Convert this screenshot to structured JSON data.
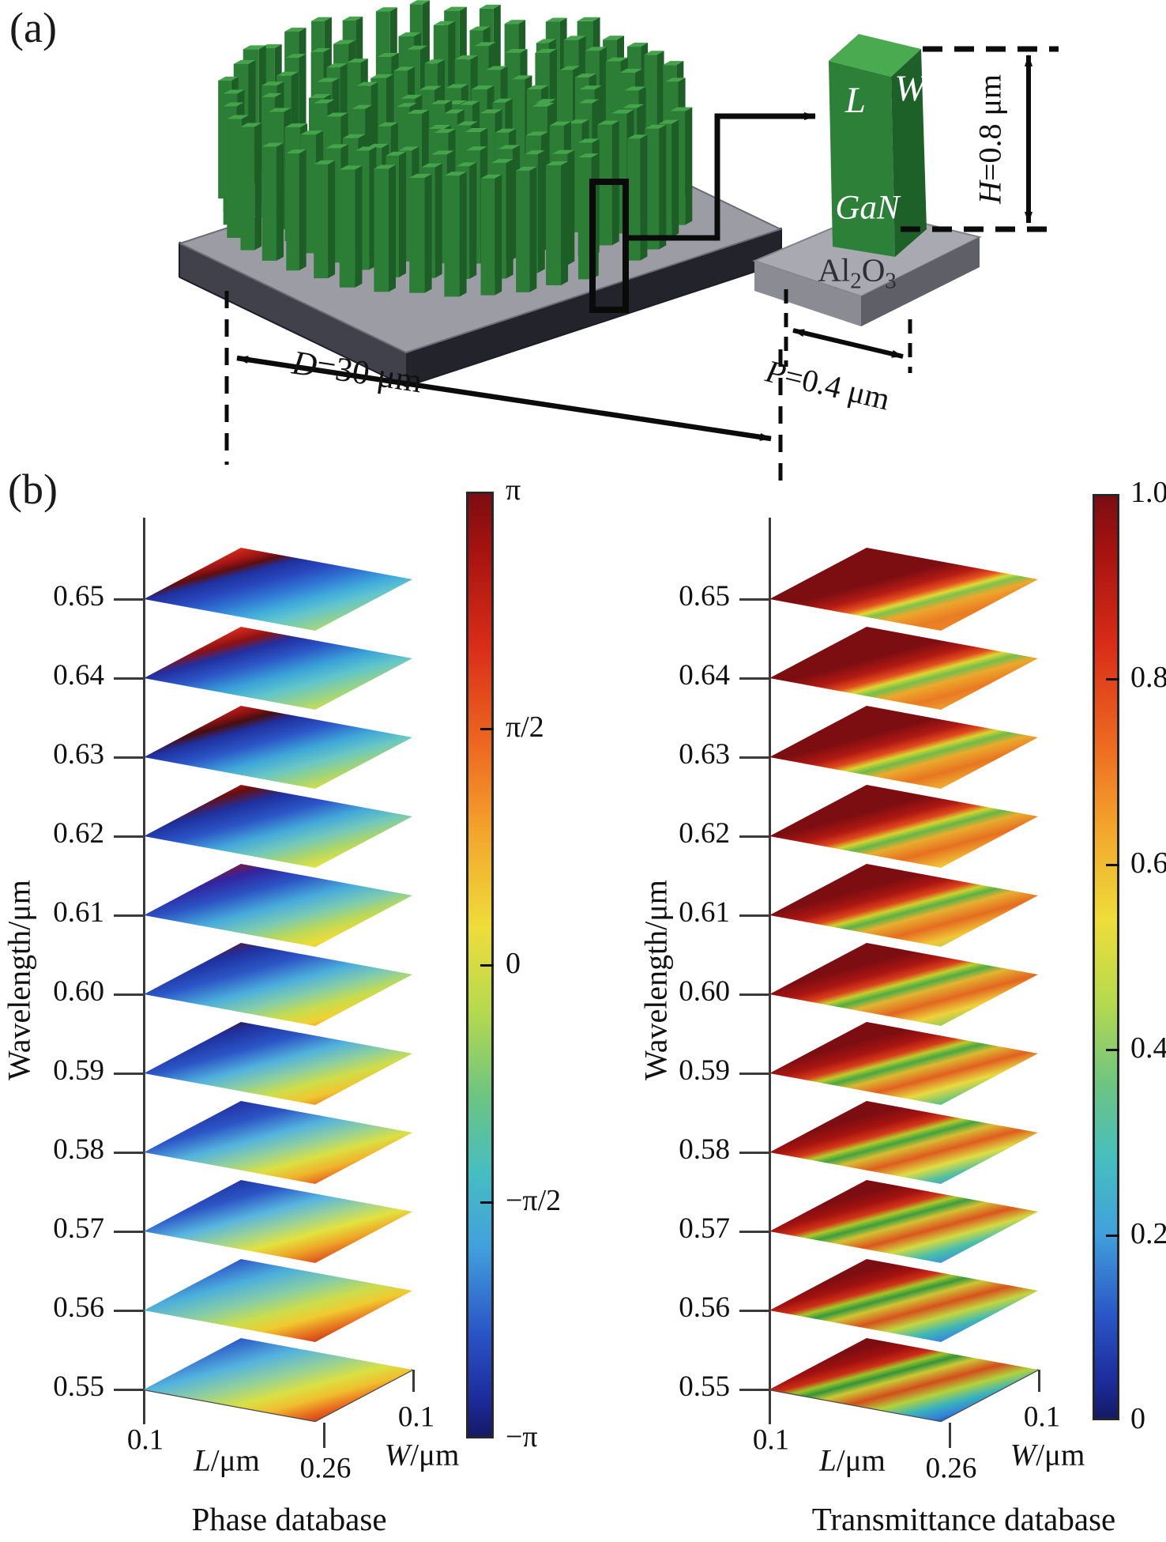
{
  "panel_a": {
    "label": "(a)",
    "metalens": {
      "diameter_var": "D",
      "diameter_rest": "=30 μm"
    },
    "unit_cell": {
      "length_label": "L",
      "width_label": "W",
      "material_label": "GaN",
      "substrate_al": "Al",
      "substrate_sub2": "2",
      "substrate_o": "O",
      "substrate_sub3": "3",
      "height_var": "H",
      "height_rest": "=0.8 μm",
      "period_var": "P",
      "period_rest": "=0.4 μm"
    },
    "colors": {
      "pillar_front": "#2c7d35",
      "pillar_side": "#1c5e26",
      "pillar_top": "#45a34b",
      "plate_top": "#9c9ca5",
      "plate_front": "#41414b",
      "plate_side": "#23232c",
      "base_top": "#a9a9b1",
      "base_left": "#8b8b93",
      "base_right": "#5f5f68"
    }
  },
  "panel_b": {
    "label": "(b)"
  },
  "chart_data": [
    {
      "type": "heatmap",
      "variant": "stacked-3d-surfaces",
      "title": "Phase database",
      "x_var": "L",
      "x_unit": "/μm",
      "x_ticks": [
        "0.1",
        "0.26"
      ],
      "x_range": [
        0.1,
        0.26
      ],
      "y_var": "W",
      "y_unit": "/μm",
      "y_ticks": [
        "0.1"
      ],
      "zlabel": "Wavelength/μm",
      "wavelengths": [
        "0.65",
        "0.64",
        "0.63",
        "0.62",
        "0.61",
        "0.60",
        "0.59",
        "0.58",
        "0.57",
        "0.56",
        "0.55"
      ],
      "colorbar": {
        "colormap": "jet",
        "ticks": [
          "π",
          "π/2",
          "0",
          "−π/2",
          "−π"
        ],
        "min_label": "−π",
        "max_label": "π"
      },
      "surfaces": [
        {
          "wavelength": "0.65",
          "stops": [
            "#f2a037 0%",
            "#ec6e24 8%",
            "#da2f1c 16%",
            "#a31515 24%",
            "#5c0f10 29%",
            "#1f309e 34%",
            "#2848be 43%",
            "#2f74d3 52%",
            "#41abdc 62%",
            "#62c5cd 70%",
            "#90d193 79%",
            "#c6de57 89%",
            "#eee23a 100%"
          ]
        },
        {
          "wavelength": "0.64",
          "stops": [
            "#f09a34 0%",
            "#e85c20 9%",
            "#d4291b 18%",
            "#8c1113 26%",
            "#232f9f 33%",
            "#2b55c6 43%",
            "#3aa2d9 55%",
            "#60c5cb 65%",
            "#95d28a 75%",
            "#d2e04c 85%",
            "#f0d634 93%",
            "#f09e2e 100%"
          ]
        },
        {
          "wavelength": "0.63",
          "stops": [
            "#ec7e2b 0%",
            "#de3a1d 10%",
            "#a61514 20%",
            "#480e10 27%",
            "#1f309e 33%",
            "#2b55c6 44%",
            "#3fa7da 56%",
            "#6ac7c3 66%",
            "#a2d477 76%",
            "#e2e23e 86%",
            "#f0b22d 93%",
            "#ea7425 100%"
          ]
        },
        {
          "wavelength": "0.62",
          "stops": [
            "#e6571f 0%",
            "#c82218 12%",
            "#680d10 21%",
            "#1f309e 30%",
            "#2b55c6 42%",
            "#44a9da 54%",
            "#72c8bb 64%",
            "#aed669 74%",
            "#eae43b 84%",
            "#eea029 92%",
            "#e25a1f 100%"
          ]
        },
        {
          "wavelength": "0.61",
          "stops": [
            "#da381c 0%",
            "#9e1413 13%",
            "#32249f 24%",
            "#2b52c4 36%",
            "#48acdb 50%",
            "#7acab2 61%",
            "#bad95a 71%",
            "#f0dc36 81%",
            "#ec8c27 90%",
            "#d64a1e 100%"
          ]
        },
        {
          "wavelength": "0.60",
          "stops": [
            "#c82518 0%",
            "#6e0f10 12%",
            "#1f309e 23%",
            "#2b55c6 36%",
            "#4cafdc 50%",
            "#84cda8 61%",
            "#c6dc4f 71%",
            "#f0d232 80%",
            "#ea7e25 89%",
            "#ce321a 100%"
          ]
        },
        {
          "wavelength": "0.59",
          "stops": [
            "#b01a14 0%",
            "#440c0f 11%",
            "#1f309e 22%",
            "#2b55c6 35%",
            "#51b1dd 48%",
            "#8dcf9e 59%",
            "#d0dd49 69%",
            "#f0c62f 78%",
            "#e66f1f 87%",
            "#be2617 96%",
            "#8c0f10 100%"
          ]
        },
        {
          "wavelength": "0.58",
          "stops": [
            "#941112 0%",
            "#232f9f 16%",
            "#2b55c6 30%",
            "#54b3de 44%",
            "#95d198 56%",
            "#dae043 66%",
            "#f0b42b 75%",
            "#e25f1f 84%",
            "#ae1d14 93%",
            "#680b0d 100%"
          ]
        },
        {
          "wavelength": "0.57",
          "stops": [
            "#700d10 0%",
            "#1f309e 14%",
            "#2b55c6 28%",
            "#58b5df 42%",
            "#9ed392 54%",
            "#e2e23f 64%",
            "#eea827 73%",
            "#dc531f 83%",
            "#9e1612 93%",
            "#500709 100%"
          ]
        },
        {
          "wavelength": "0.56",
          "stops": [
            "#2a279e 0%",
            "#2b55c6 16%",
            "#4cafdc 32%",
            "#86cda6 46%",
            "#ccdd4d 58%",
            "#f0ca2f 67%",
            "#e66f1f 77%",
            "#be2617 87%",
            "#700c0e 95%",
            "#2c2391 100%"
          ]
        },
        {
          "wavelength": "0.55",
          "stops": [
            "#1d309f 0%",
            "#2d5fca 18%",
            "#54b3de 34%",
            "#94d099 48%",
            "#dae043 60%",
            "#f0be2e 69%",
            "#e8691f 78%",
            "#c42a17 87%",
            "#7e0e10 95%",
            "#243b9b 100%"
          ]
        }
      ]
    },
    {
      "type": "heatmap",
      "variant": "stacked-3d-surfaces",
      "title": "Transmittance database",
      "x_var": "L",
      "x_unit": "/μm",
      "x_ticks": [
        "0.1",
        "0.26"
      ],
      "x_range": [
        0.1,
        0.26
      ],
      "y_var": "W",
      "y_unit": "/μm",
      "y_ticks": [
        "0.1"
      ],
      "zlabel": "Wavelength/μm",
      "wavelengths": [
        "0.65",
        "0.64",
        "0.63",
        "0.62",
        "0.61",
        "0.60",
        "0.59",
        "0.58",
        "0.57",
        "0.56",
        "0.55"
      ],
      "colorbar": {
        "colormap": "jet",
        "ticks": [
          "1.0",
          "0.8",
          "0.6",
          "0.4",
          "0.2",
          "0"
        ],
        "min_label": "0",
        "max_label": "1.0"
      },
      "surfaces": [
        {
          "wavelength": "0.65",
          "stops": [
            "#7c0d11 0%",
            "#7c0d11 40%",
            "#b41b14 49%",
            "#e5511e 55%",
            "#e2d833 59%",
            "#7cc24d 62%",
            "#eda62c 67%",
            "#ea7c23 76%",
            "#e98e27 88%",
            "#f0ac32 100%"
          ]
        },
        {
          "wavelength": "0.64",
          "stops": [
            "#7c0d11 0%",
            "#7c0d11 38%",
            "#b21a13 47%",
            "#e34e1d 53%",
            "#ded632 57%",
            "#74bf4c 61%",
            "#eca82d 66%",
            "#e97a22 75%",
            "#eeb232 88%",
            "#ead23c 100%"
          ]
        },
        {
          "wavelength": "0.63",
          "stops": [
            "#7c0d11 0%",
            "#7c0d11 36%",
            "#b01913 45%",
            "#e14b1d 51%",
            "#dad430 55%",
            "#6cbc4a 59%",
            "#eaaa2d 64%",
            "#e87621 73%",
            "#f0ba34 85%",
            "#cede4a 100%"
          ]
        },
        {
          "wavelength": "0.62",
          "stops": [
            "#7c0d11 0%",
            "#7c0d11 34%",
            "#ae1812 43%",
            "#df481c 49%",
            "#d6d22f 53%",
            "#62b748 57%",
            "#e8ac2e 62%",
            "#e77020 71%",
            "#f0c236 82%",
            "#aad452 92%",
            "#7eca66 100%"
          ]
        },
        {
          "wavelength": "0.61",
          "stops": [
            "#7c0d11 0%",
            "#7c0d11 32%",
            "#ac1712 41%",
            "#dd441b 47%",
            "#d0d02e 51%",
            "#58b246 55%",
            "#e6b030 60%",
            "#e56c20 69%",
            "#f0c838 79%",
            "#94ce56 89%",
            "#5ec4ae 100%"
          ]
        },
        {
          "wavelength": "0.60",
          "stops": [
            "#7c0d11 0%",
            "#7c0d11 30%",
            "#aa1612 39%",
            "#da401b 45%",
            "#c8cd2c 49%",
            "#4ead44 53%",
            "#e2b431 58%",
            "#e36620 67%",
            "#eed23c 76%",
            "#7cc85e 86%",
            "#4cbcc4 100%"
          ]
        },
        {
          "wavelength": "0.59",
          "stops": [
            "#7c0d11 0%",
            "#7c0d11 28%",
            "#a81511 37%",
            "#d73c1a 43%",
            "#c0ca2b 47%",
            "#46a842 51%",
            "#dcb831 56%",
            "#e16020 64%",
            "#e8da40 73%",
            "#64c47c 82%",
            "#46aed8 91%",
            "#44b2cc 100%"
          ]
        },
        {
          "wavelength": "0.58",
          "stops": [
            "#7c0d11 0%",
            "#7c0d11 26%",
            "#a61410 35%",
            "#d43819 41%",
            "#b8c82a 45%",
            "#40a340 49%",
            "#d8bc32 54%",
            "#de5c1f 62%",
            "#dede44 71%",
            "#54c09a 79%",
            "#429ade 87%",
            "#2e5ec2 94%",
            "#3cacca 100%"
          ]
        },
        {
          "wavelength": "0.57",
          "stops": [
            "#7c0d11 0%",
            "#7c0d11 25%",
            "#a41310 33%",
            "#d13418 39%",
            "#b0c629 43%",
            "#3a9e3e 47%",
            "#d4c033 52%",
            "#da561e 60%",
            "#d2da42 68%",
            "#4abfa8 76%",
            "#3e92dc 84%",
            "#2a50bc 91%",
            "#38a8c8 100%"
          ]
        },
        {
          "wavelength": "0.56",
          "stops": [
            "#7c0d11 0%",
            "#7c0d11 24%",
            "#a21210 32%",
            "#ce3017 38%",
            "#a8c428 42%",
            "#36993c 46%",
            "#d0c434 51%",
            "#d6521d 59%",
            "#c2d640 67%",
            "#42bab0 75%",
            "#388cda 82%",
            "#2546b6 89%",
            "#34aac6 96%",
            "#48c0c2 100%"
          ]
        },
        {
          "wavelength": "0.55",
          "stops": [
            "#7c0d11 0%",
            "#7c0d11 22%",
            "#a01110 30%",
            "#cc2c16 36%",
            "#a0c227 40%",
            "#33943a 44%",
            "#ccc835 49%",
            "#d24e1c 57%",
            "#b2d23c 65%",
            "#3cb4b8 73%",
            "#3384d8 80%",
            "#2040ae 87%",
            "#2f9ec2 94%",
            "#4cc2c4 100%"
          ]
        }
      ]
    }
  ]
}
